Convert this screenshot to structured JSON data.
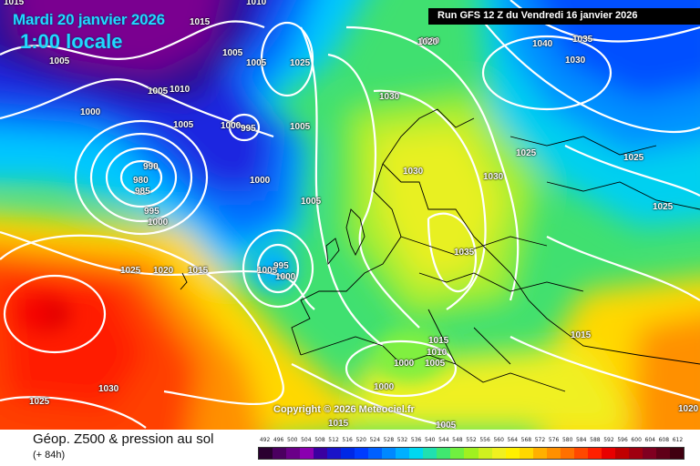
{
  "header": {
    "date": "Mardi 20 janvier 2026",
    "local_time": "1:00 locale",
    "run": "Run GFS 12 Z du Vendredi 16 janvier 2026"
  },
  "map": {
    "copyright": "Copyright © 2026 Meteociel.fr",
    "isobar_labels": [
      "1015",
      "1010",
      "1015",
      "1005",
      "1005",
      "1005",
      "1025",
      "1005",
      "1010",
      "1000",
      "1005",
      "1000",
      "995",
      "990",
      "980",
      "985",
      "995",
      "1000",
      "1000",
      "1005",
      "1005",
      "1025",
      "1020",
      "1015",
      "1005",
      "1000",
      "995",
      "1030",
      "1030",
      "1030",
      "1030",
      "1025",
      "1035",
      "1015",
      "1010",
      "1000",
      "1005",
      "1000",
      "1030",
      "1025",
      "1015",
      "1005",
      "1020",
      "1040",
      "1035",
      "1030",
      "1025",
      "1020",
      "1015",
      "1025",
      "1030"
    ]
  },
  "footer": {
    "parameter_title": "Géop. Z500 & pression au sol",
    "lead_time": "(+ 84h)"
  },
  "legend": {
    "labels": [
      "492",
      "496",
      "500",
      "504",
      "508",
      "512",
      "516",
      "520",
      "524",
      "528",
      "532",
      "536",
      "540",
      "544",
      "548",
      "552",
      "556",
      "560",
      "564",
      "568",
      "572",
      "576",
      "580",
      "584",
      "588",
      "592",
      "596",
      "600",
      "604",
      "608",
      "612"
    ],
    "colors": [
      "#2a0030",
      "#4b0060",
      "#6a0088",
      "#8a00b0",
      "#3a00a0",
      "#1a14c8",
      "#0028e6",
      "#003cff",
      "#0060ff",
      "#0088ff",
      "#00b0ff",
      "#00d8f0",
      "#20e0b0",
      "#40e870",
      "#70f040",
      "#a0f020",
      "#d0f020",
      "#f0f020",
      "#fff000",
      "#ffd800",
      "#ffb000",
      "#ff9000",
      "#ff7000",
      "#ff4800",
      "#ff2000",
      "#e80000",
      "#c00000",
      "#a00010",
      "#800020",
      "#600018",
      "#400010"
    ]
  }
}
